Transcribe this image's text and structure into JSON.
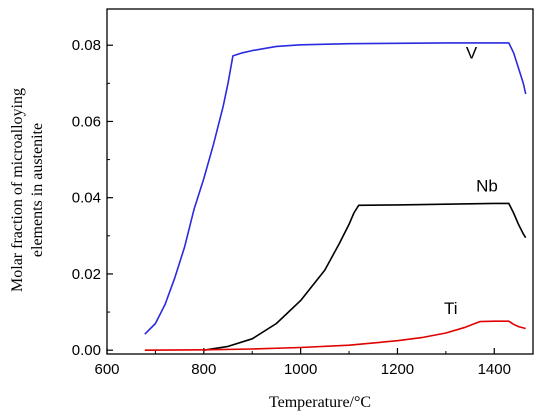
{
  "chart_data": {
    "type": "line",
    "title": "",
    "xlabel": "Temperature/°C",
    "ylabel": "Molar fraction of microalloying elements in austenite",
    "ylabel_lines": [
      "Molar fraction of microalloying",
      "elements in austenite"
    ],
    "xlim": [
      600,
      1480
    ],
    "ylim": [
      -0.001,
      0.0895
    ],
    "xticks": [
      "600",
      "800",
      "1000",
      "1200",
      "1400"
    ],
    "yticks": [
      "0.00",
      "0.02",
      "0.04",
      "0.06",
      "0.08"
    ],
    "grid": false,
    "legend": "inline labels",
    "series": [
      {
        "name": "V",
        "color": "#2a2ae0",
        "label_at": [
          1353,
          0.0765
        ],
        "points": [
          [
            678,
            0.0042
          ],
          [
            700,
            0.007
          ],
          [
            720,
            0.012
          ],
          [
            740,
            0.019
          ],
          [
            760,
            0.027
          ],
          [
            780,
            0.037
          ],
          [
            800,
            0.045
          ],
          [
            820,
            0.054
          ],
          [
            840,
            0.064
          ],
          [
            850,
            0.07
          ],
          [
            860,
            0.0772
          ],
          [
            880,
            0.078
          ],
          [
            900,
            0.0786
          ],
          [
            950,
            0.0797
          ],
          [
            1000,
            0.0801
          ],
          [
            1100,
            0.0804
          ],
          [
            1200,
            0.0805
          ],
          [
            1300,
            0.0806
          ],
          [
            1400,
            0.0806
          ],
          [
            1430,
            0.0806
          ],
          [
            1440,
            0.078
          ],
          [
            1450,
            0.074
          ],
          [
            1460,
            0.07
          ],
          [
            1465,
            0.0672
          ]
        ]
      },
      {
        "name": "Nb",
        "color": "#000000",
        "label_at": [
          1385,
          0.0416
        ],
        "points": [
          [
            800,
            0.0
          ],
          [
            850,
            0.001
          ],
          [
            900,
            0.003
          ],
          [
            950,
            0.007
          ],
          [
            1000,
            0.013
          ],
          [
            1050,
            0.021
          ],
          [
            1080,
            0.028
          ],
          [
            1100,
            0.033
          ],
          [
            1110,
            0.036
          ],
          [
            1120,
            0.038
          ],
          [
            1200,
            0.0381
          ],
          [
            1300,
            0.0383
          ],
          [
            1400,
            0.0385
          ],
          [
            1430,
            0.0385
          ],
          [
            1440,
            0.036
          ],
          [
            1450,
            0.033
          ],
          [
            1460,
            0.0305
          ],
          [
            1465,
            0.0295
          ]
        ]
      },
      {
        "name": "Ti",
        "color": "#e00000",
        "label_at": [
          1310,
          0.0095
        ],
        "points": [
          [
            678,
            0.0
          ],
          [
            800,
            0.0001
          ],
          [
            900,
            0.0003
          ],
          [
            1000,
            0.0007
          ],
          [
            1100,
            0.0013
          ],
          [
            1200,
            0.0025
          ],
          [
            1250,
            0.0033
          ],
          [
            1300,
            0.0045
          ],
          [
            1340,
            0.006
          ],
          [
            1360,
            0.007
          ],
          [
            1370,
            0.0075
          ],
          [
            1400,
            0.0076
          ],
          [
            1430,
            0.0076
          ],
          [
            1440,
            0.0068
          ],
          [
            1450,
            0.0062
          ],
          [
            1465,
            0.0057
          ]
        ]
      }
    ]
  }
}
